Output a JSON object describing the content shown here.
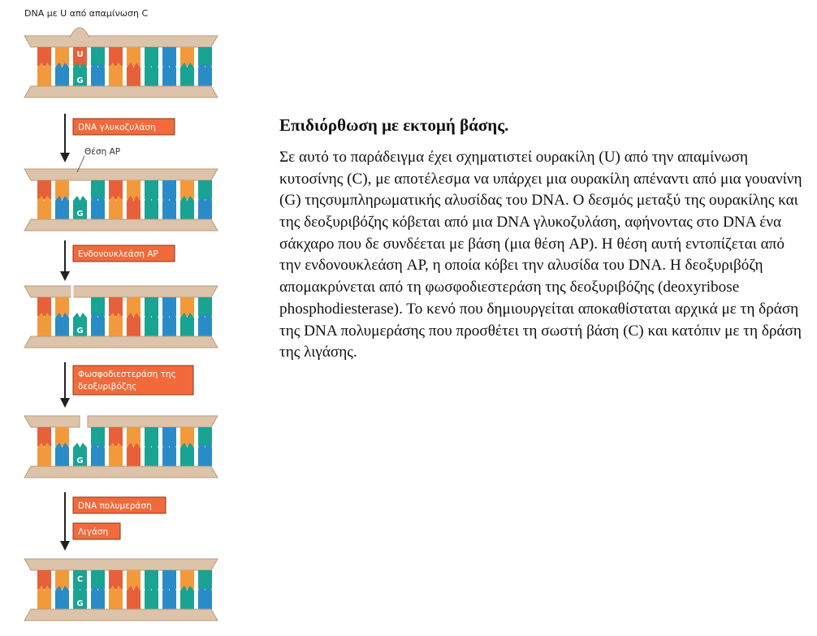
{
  "figure": {
    "title": "DNA με U από απαμίνωση C",
    "ap_site_label": "Θέση AP",
    "enzymes": {
      "glycosylase": "DNA γλυκοζυλάση",
      "ap_endonuclease": "Ενδονουκλεάση AP",
      "phosphodiesterase_line1": "Φωσφοδιεστεράση της",
      "phosphodiesterase_line2": "δεοξυριβόζης",
      "polymerase": "DNA πολυμεράση",
      "ligase": "Λιγάση"
    },
    "base_letters": {
      "uracil": "U",
      "guanine": "G",
      "cytosine": "C"
    },
    "colors": {
      "backbone": "#dcc3a9",
      "orange": "#f29a3b",
      "red_orange": "#e8603a",
      "teal": "#1aa392",
      "blue": "#2a8bc9",
      "enzyme_box": "#f26a3b"
    }
  },
  "text": {
    "heading": "Επιδιόρθωση με εκτομή βάσης.",
    "body": "Σε αυτό το παράδειγμα έχει σχηματιστεί ουρακίλη (U) από την απαμίνωση κυτοσίνης (C), με αποτέλεσμα να υπάρχει μια ουρακίλη απέναντι από μια γουανίνη (G) τηςσυμπληρωματικής αλυσίδας του DNA. Ο δεσμός μεταξύ της ουρακίλης και της δεοξυριβόζης κόβεται από μια DNA γλυκοζυλάση, αφήνοντας στο DNA ένα σάκχαρο που δε συνδέεται με βάση (μια θέση AP). Η θέση αυτή εντοπίζεται από την ενδονουκλεάση AP, η οποία κόβει την αλυσίδα του DNA. Η δεοξυριβόζη απομακρύνεται από τη φωσφοδιεστεράση της δεοξυριβόζης (deoxyribose phosphodiesterase). Το κενό που δημιουργείται αποκαθίσταται αρχικά με τη δράση της DNA πολυμεράσης που προσθέτει τη σωστή βάση (C) και κατόπιν με τη δράση της λιγάσης."
  }
}
